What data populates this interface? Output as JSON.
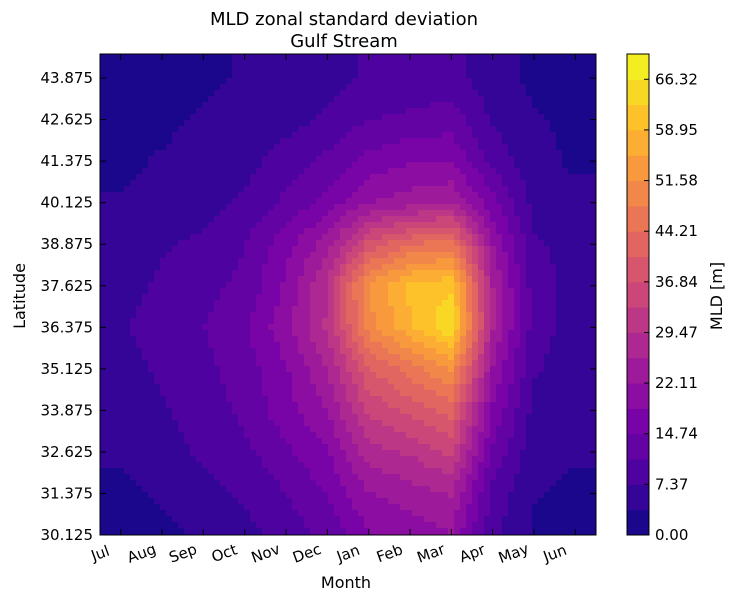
{
  "chart_data": {
    "type": "heatmap",
    "style": "filled-contour",
    "title": "MLD zonal standard deviation",
    "subtitle": "Gulf Stream",
    "xlabel": "Month",
    "ylabel": "Latitude",
    "colorbar_label": "MLD [m]",
    "colormap": "plasma",
    "grid": false,
    "x_tick_labels": [
      "Jul",
      "Aug",
      "Sep",
      "Oct",
      "Nov",
      "Dec",
      "Jan",
      "Feb",
      "Mar",
      "Apr",
      "May",
      "Jun"
    ],
    "y_tick_values": [
      30.125,
      31.375,
      32.625,
      33.875,
      35.125,
      36.375,
      37.625,
      38.875,
      40.125,
      41.375,
      42.625,
      43.875
    ],
    "y_tick_labels": [
      "30.125",
      "31.375",
      "32.625",
      "33.875",
      "35.125",
      "36.375",
      "37.625",
      "38.875",
      "40.125",
      "41.375",
      "42.625",
      "43.875"
    ],
    "ylim": [
      30.125,
      44.6
    ],
    "colorbar_tick_values": [
      0.0,
      7.37,
      14.74,
      22.11,
      29.47,
      36.84,
      44.21,
      51.58,
      58.95,
      66.32
    ],
    "colorbar_tick_labels": [
      "0.00",
      "7.37",
      "14.74",
      "22.11",
      "29.47",
      "36.84",
      "44.21",
      "51.58",
      "58.95",
      "66.32"
    ],
    "colorbar_range": [
      0,
      70
    ],
    "colorbar_levels": 19,
    "field_latitudes": [
      30.125,
      31.375,
      32.625,
      33.875,
      35.125,
      36.375,
      37.625,
      38.875,
      40.125,
      41.375,
      42.625,
      43.875
    ],
    "field_months": [
      "Jul",
      "Aug",
      "Sep",
      "Oct",
      "Nov",
      "Dec",
      "Jan",
      "Feb",
      "Mar",
      "Apr",
      "May",
      "Jun"
    ],
    "values": [
      [
        3,
        3,
        4,
        6,
        9,
        12,
        18,
        20,
        22,
        8,
        3,
        3
      ],
      [
        3,
        4,
        6,
        8,
        11,
        15,
        22,
        24,
        26,
        10,
        4,
        3
      ],
      [
        4,
        6,
        8,
        10,
        14,
        18,
        28,
        30,
        34,
        14,
        5,
        4
      ],
      [
        5,
        7,
        9,
        12,
        17,
        22,
        34,
        38,
        42,
        18,
        6,
        5
      ],
      [
        6,
        8,
        10,
        13,
        18,
        26,
        40,
        46,
        52,
        22,
        8,
        5
      ],
      [
        7,
        9,
        11,
        14,
        21,
        30,
        50,
        58,
        66,
        26,
        9,
        6
      ],
      [
        6,
        8,
        10,
        12,
        19,
        30,
        52,
        60,
        62,
        26,
        9,
        6
      ],
      [
        5,
        7,
        8,
        11,
        17,
        24,
        38,
        44,
        46,
        22,
        8,
        6
      ],
      [
        4,
        5,
        6,
        8,
        12,
        16,
        22,
        24,
        26,
        16,
        6,
        5
      ],
      [
        3,
        4,
        5,
        6,
        9,
        12,
        16,
        18,
        18,
        10,
        5,
        3
      ],
      [
        3,
        3,
        4,
        5,
        6,
        8,
        11,
        12,
        13,
        7,
        4,
        3
      ],
      [
        2,
        3,
        3,
        4,
        5,
        6,
        8,
        8,
        9,
        5,
        3,
        2
      ]
    ]
  }
}
